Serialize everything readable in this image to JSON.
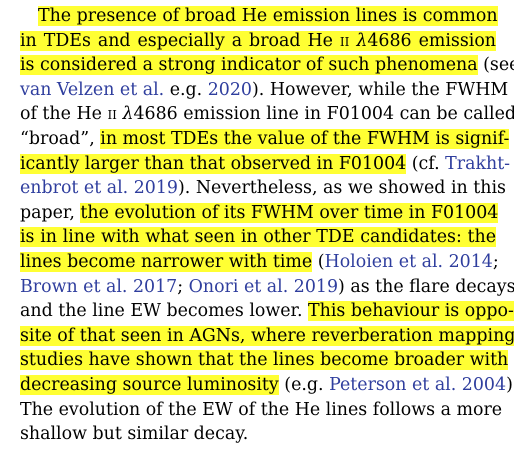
{
  "paragraph": {
    "lines": [
      [
        {
          "t": "The presence of broad He emission lines is common",
          "hl": true
        }
      ],
      [
        {
          "t": "in TDEs and especially a broad He ",
          "hl": true
        },
        {
          "t": "ii",
          "hl": true,
          "sc": true
        },
        {
          "t": " ",
          "hl": true
        },
        {
          "t": "λ",
          "hl": true,
          "it": true
        },
        {
          "t": "4686 emission",
          "hl": true
        }
      ],
      [
        {
          "t": "is considered a strong indicator of such phenomena",
          "hl": true
        },
        {
          "t": " (see"
        }
      ],
      [
        {
          "t": "van Velzen et al.",
          "cite": true
        },
        {
          "t": " e.g. "
        },
        {
          "t": "2020",
          "cite": true
        },
        {
          "t": "). However, while the FWHM"
        }
      ],
      [
        {
          "t": "of the He "
        },
        {
          "t": "ii",
          "sc": true
        },
        {
          "t": " "
        },
        {
          "t": "λ",
          "it": true
        },
        {
          "t": "4686 emission line in F01004 can be called"
        }
      ],
      [
        {
          "t": "“broad”, "
        },
        {
          "t": "in most TDEs the value of the FWHM is signif-",
          "hl": true
        }
      ],
      [
        {
          "t": "icantly larger than that observed in F01004",
          "hl": true
        },
        {
          "t": " (cf. "
        },
        {
          "t": "Trakht-",
          "cite": true
        }
      ],
      [
        {
          "t": "enbrot et al. 2019",
          "cite": true
        },
        {
          "t": "). Nevertheless, as we showed in this"
        }
      ],
      [
        {
          "t": "paper, "
        },
        {
          "t": "the evolution of its FWHM over time in F01004",
          "hl": true
        }
      ],
      [
        {
          "t": "is in line with what seen in other TDE candidates: the",
          "hl": true
        }
      ],
      [
        {
          "t": "lines become narrower with time",
          "hl": true
        },
        {
          "t": " ("
        },
        {
          "t": "Holoien et al. 2014",
          "cite": true
        },
        {
          "t": ";"
        }
      ],
      [
        {
          "t": "Brown et al. 2017",
          "cite": true
        },
        {
          "t": "; "
        },
        {
          "t": "Onori et al. 2019",
          "cite": true
        },
        {
          "t": ") as the flare decays"
        }
      ],
      [
        {
          "t": "and the line EW becomes lower. "
        },
        {
          "t": "This behaviour is oppo-",
          "hl": true
        }
      ],
      [
        {
          "t": "site of that seen in AGNs, where reverberation mapping",
          "hl": true
        }
      ],
      [
        {
          "t": "studies have shown that the lines become broader with",
          "hl": true
        }
      ],
      [
        {
          "t": "decreasing source luminosity",
          "hl": true
        },
        {
          "t": " (e.g. "
        },
        {
          "t": "Peterson et al. 2004",
          "cite": true
        },
        {
          "t": ")."
        }
      ],
      [
        {
          "t": "The evolution of the EW of the He lines follows a more"
        }
      ],
      [
        {
          "t": "shallow but similar decay."
        }
      ]
    ]
  },
  "colors": {
    "highlight": "#ffff33",
    "citation": "#2f3e9e",
    "text": "#000000"
  }
}
